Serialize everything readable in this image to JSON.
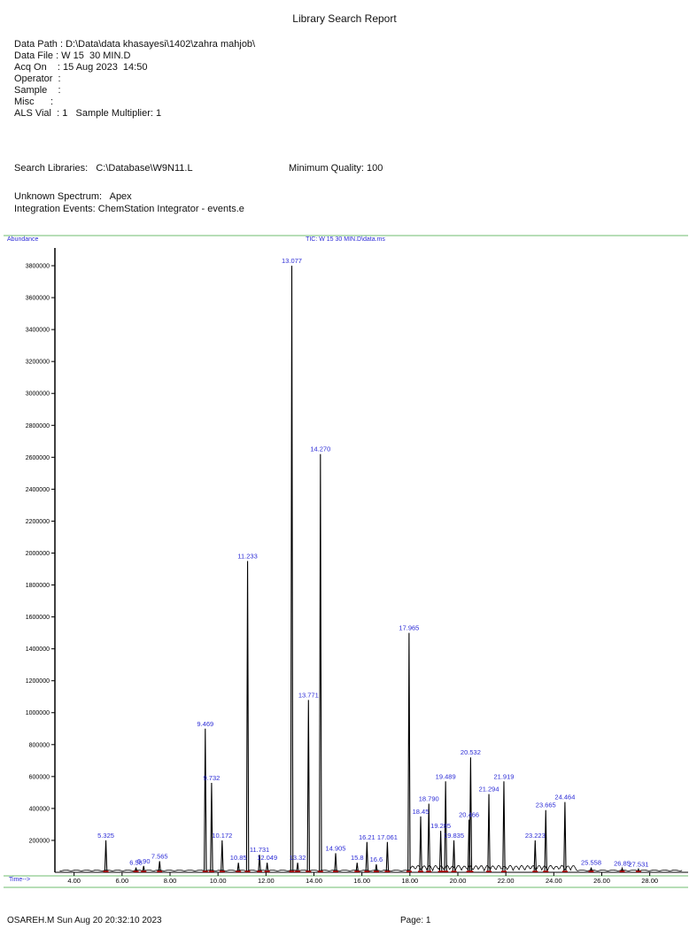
{
  "report": {
    "title": "Library Search Report",
    "data_path": "Data Path : D:\\Data\\data khasayesi\\1402\\zahra mahjob\\",
    "data_file": "Data File : W 15  30 MIN.D",
    "acq_on": "Acq On    : 15 Aug 2023  14:50",
    "operator": "Operator  :",
    "sample": "Sample    :",
    "misc": "Misc      :",
    "als_vial": "ALS Vial  : 1   Sample Multiplier: 1",
    "search_libraries": "Search Libraries:   C:\\Database\\W9N11.L",
    "minimum_quality": "Minimum Quality: 100",
    "unknown_spectrum": "Unknown Spectrum:   Apex",
    "integration_events": "Integration Events: ChemStation Integrator - events.e"
  },
  "footer": {
    "left": "OSAREH.M Sun Aug 20 20:32:10 2023",
    "right": "Page: 1"
  },
  "colors": {
    "frame": "#9fd49f",
    "trace": "#000000",
    "baseline": "#c00000",
    "label": "#2b2bd6"
  },
  "chart_data": {
    "type": "line",
    "title": "TIC: W 15  30 MIN.D\\data.ms",
    "ylabel": "Abundance",
    "xlabel": "Time-->",
    "xlim": [
      3.2,
      29.6
    ],
    "ylim": [
      0,
      3900000
    ],
    "xticks": [
      4,
      6,
      8,
      10,
      12,
      14,
      16,
      18,
      20,
      22,
      24,
      26,
      28
    ],
    "xtick_labels": [
      "4.00",
      "6.00",
      "8.00",
      "10.00",
      "12.00",
      "14.00",
      "16.00",
      "18.00",
      "20.00",
      "22.00",
      "24.00",
      "26.00",
      "28.00"
    ],
    "yticks": [
      200000,
      400000,
      600000,
      800000,
      1000000,
      1200000,
      1400000,
      1600000,
      1800000,
      2000000,
      2200000,
      2400000,
      2600000,
      2800000,
      3000000,
      3200000,
      3400000,
      3600000,
      3800000
    ],
    "ytick_labels": [
      "200000",
      "400000",
      "600000",
      "800000",
      "1000000",
      "1200000",
      "1400000",
      "1600000",
      "1800000",
      "2000000",
      "2200000",
      "2400000",
      "2600000",
      "2800000",
      "3000000",
      "3200000",
      "3400000",
      "3600000",
      "3800000"
    ],
    "peaks": [
      {
        "rt": 5.325,
        "label": "5.325",
        "height": 200000
      },
      {
        "rt": 6.58,
        "label": "6.58",
        "height": 30000
      },
      {
        "rt": 6.9,
        "label": "6.90",
        "height": 40000
      },
      {
        "rt": 7.565,
        "label": "7.565",
        "height": 70000
      },
      {
        "rt": 9.469,
        "label": "9.469",
        "height": 900000
      },
      {
        "rt": 9.732,
        "label": "9.732",
        "height": 560000
      },
      {
        "rt": 10.172,
        "label": "10.172",
        "height": 200000
      },
      {
        "rt": 10.85,
        "label": "10.85",
        "height": 60000
      },
      {
        "rt": 11.233,
        "label": "11.233",
        "height": 1950000
      },
      {
        "rt": 11.731,
        "label": "11.731",
        "height": 110000
      },
      {
        "rt": 12.049,
        "label": "12.049",
        "height": 60000
      },
      {
        "rt": 13.077,
        "label": "13.077",
        "height": 3800000
      },
      {
        "rt": 13.32,
        "label": "13.32",
        "height": 60000
      },
      {
        "rt": 13.771,
        "label": "13.771",
        "height": 1080000
      },
      {
        "rt": 14.27,
        "label": "14.270",
        "height": 2620000
      },
      {
        "rt": 14.905,
        "label": "14.905",
        "height": 120000
      },
      {
        "rt": 15.8,
        "label": "15.8",
        "height": 60000
      },
      {
        "rt": 16.21,
        "label": "16.21",
        "height": 190000
      },
      {
        "rt": 16.6,
        "label": "16.6",
        "height": 50000
      },
      {
        "rt": 17.061,
        "label": "17.061",
        "height": 190000
      },
      {
        "rt": 17.965,
        "label": "17.965",
        "height": 1500000
      },
      {
        "rt": 18.45,
        "label": "18.45",
        "height": 350000
      },
      {
        "rt": 18.79,
        "label": "18.790",
        "height": 430000
      },
      {
        "rt": 19.285,
        "label": "19.285",
        "height": 260000
      },
      {
        "rt": 19.489,
        "label": "19.489",
        "height": 570000
      },
      {
        "rt": 19.835,
        "label": "19.835",
        "height": 200000
      },
      {
        "rt": 20.466,
        "label": "20.466",
        "height": 330000
      },
      {
        "rt": 20.532,
        "label": "20.532",
        "height": 720000
      },
      {
        "rt": 21.294,
        "label": "21.294",
        "height": 490000
      },
      {
        "rt": 21.919,
        "label": "21.919",
        "height": 570000
      },
      {
        "rt": 23.223,
        "label": "23.223",
        "height": 200000
      },
      {
        "rt": 23.665,
        "label": "23.665",
        "height": 390000
      },
      {
        "rt": 24.464,
        "label": "24.464",
        "height": 440000
      },
      {
        "rt": 25.558,
        "label": "25.558",
        "height": 30000
      },
      {
        "rt": 26.85,
        "label": "26.85",
        "height": 25000
      },
      {
        "rt": 27.531,
        "label": "27.531",
        "height": 20000
      }
    ]
  }
}
